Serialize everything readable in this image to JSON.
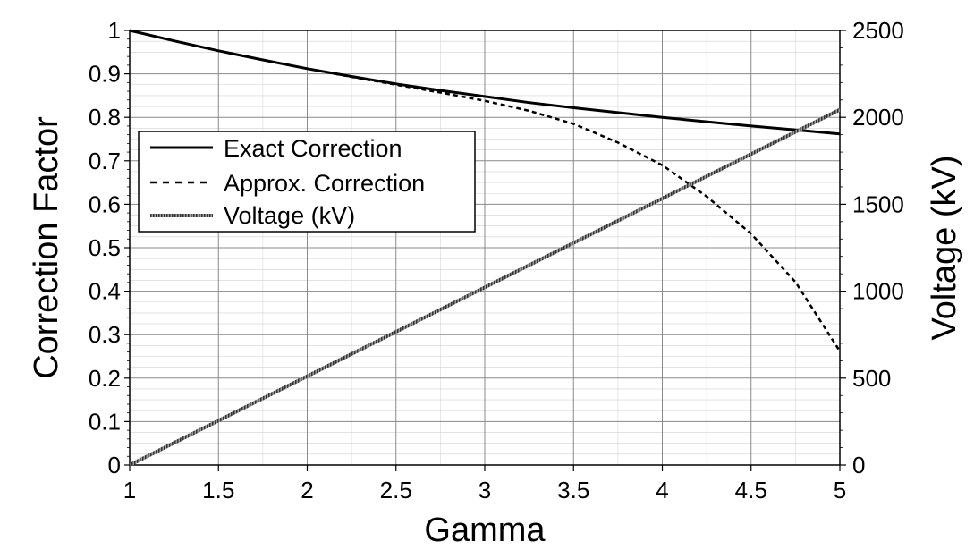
{
  "chart_data": {
    "type": "line",
    "title": "",
    "xlabel": "Gamma",
    "ylabel": "Correction Factor",
    "y2label": "Voltage (kV)",
    "xlim": [
      1,
      5
    ],
    "ylim": [
      0,
      1
    ],
    "y2lim": [
      0,
      2500
    ],
    "x_ticks": [
      "1",
      "1.5",
      "2",
      "2.5",
      "3",
      "3.5",
      "4",
      "4.5",
      "5"
    ],
    "y_ticks": [
      "0",
      "0.1",
      "0.2",
      "0.3",
      "0.4",
      "0.5",
      "0.6",
      "0.7",
      "0.8",
      "0.9",
      "1"
    ],
    "y2_ticks": [
      "0",
      "500",
      "1000",
      "1500",
      "2000",
      "2500"
    ],
    "grid": true,
    "legend_position": "left",
    "series": [
      {
        "name": "Exact Correction",
        "axis": "left",
        "style": "solid",
        "x": [
          1.0,
          1.25,
          1.5,
          1.75,
          2.0,
          2.25,
          2.5,
          2.75,
          3.0,
          3.25,
          3.5,
          3.75,
          4.0,
          4.25,
          4.5,
          4.75,
          5.0
        ],
        "y": [
          1.0,
          0.976,
          0.953,
          0.932,
          0.912,
          0.894,
          0.877,
          0.862,
          0.848,
          0.834,
          0.822,
          0.811,
          0.8,
          0.79,
          0.78,
          0.771,
          0.762
        ]
      },
      {
        "name": "Approx. Correction",
        "axis": "left",
        "style": "dashed",
        "x": [
          1.0,
          1.25,
          1.5,
          1.75,
          2.0,
          2.25,
          2.5,
          2.75,
          3.0,
          3.25,
          3.5,
          3.75,
          4.0,
          4.25,
          4.5,
          4.75,
          5.0
        ],
        "y": [
          1.0,
          0.976,
          0.953,
          0.932,
          0.912,
          0.893,
          0.875,
          0.857,
          0.838,
          0.815,
          0.785,
          0.742,
          0.69,
          0.618,
          0.532,
          0.421,
          0.262
        ]
      },
      {
        "name": "Voltage (kV)",
        "axis": "right",
        "style": "hatched",
        "x": [
          1.0,
          5.0
        ],
        "y": [
          0,
          2044
        ]
      }
    ]
  }
}
